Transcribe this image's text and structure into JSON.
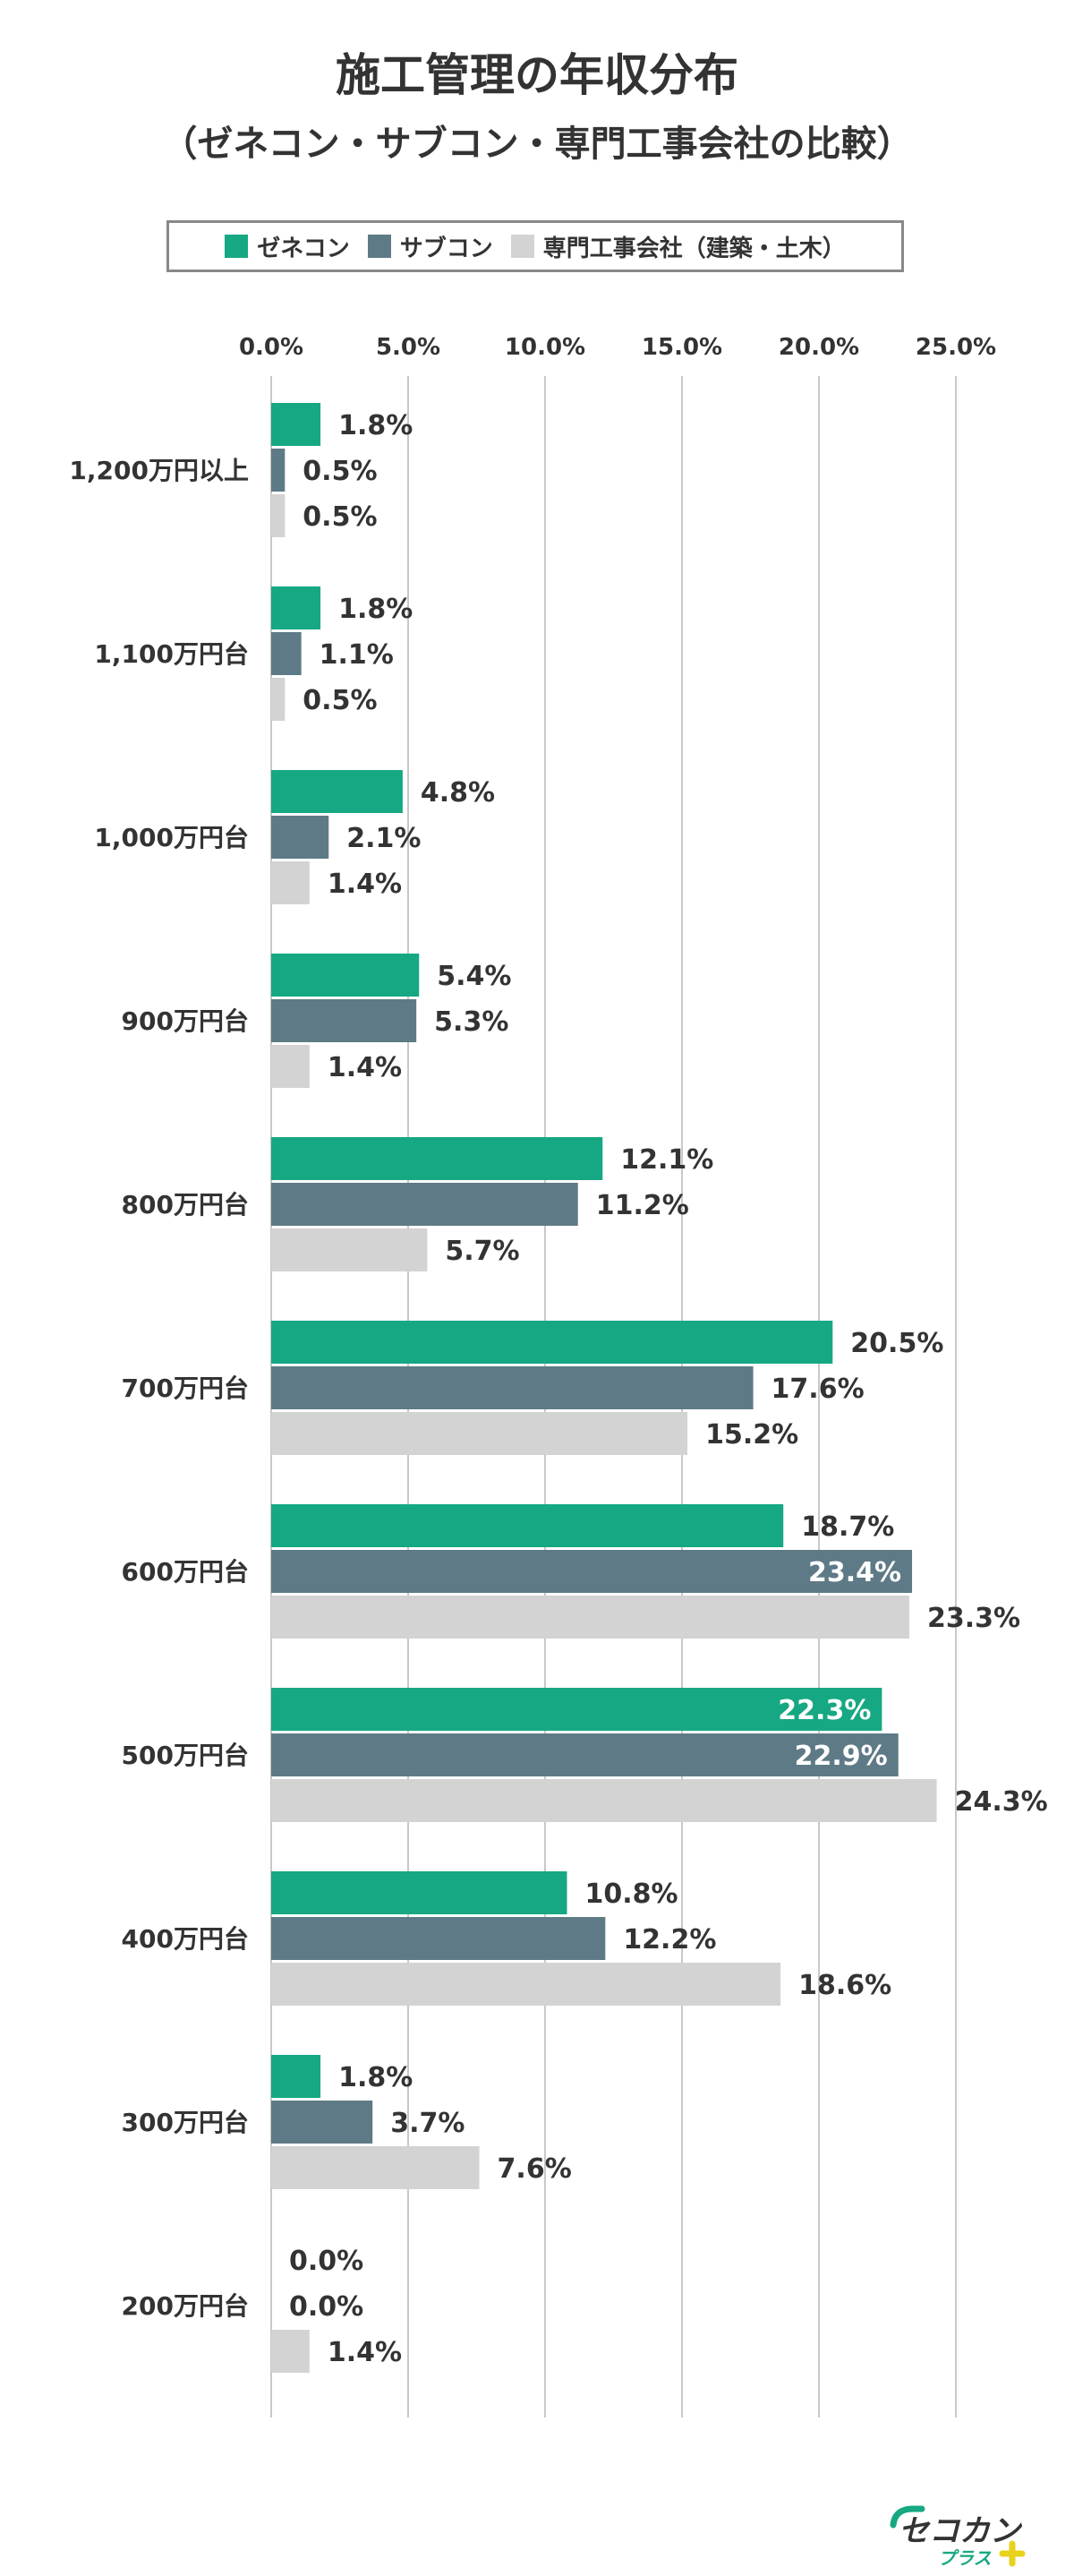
{
  "title": "施工管理の年収分布",
  "subtitle": "（ゼネコン・サブコン・専門工事会社の比較）",
  "legend": [
    {
      "name": "ゼネコン",
      "color": "#16a882"
    },
    {
      "name": "サブコン",
      "color": "#5e7a86"
    },
    {
      "name": "専門工事会社（建築・土木）",
      "color": "#d3d3d3"
    }
  ],
  "logo": {
    "name": "セコカン",
    "tag": "プラス"
  },
  "chart_data": {
    "type": "bar",
    "orientation": "horizontal",
    "title": "施工管理の年収分布",
    "xlim": [
      0,
      25
    ],
    "xticks": [
      "0.0%",
      "5.0%",
      "10.0%",
      "15.0%",
      "20.0%",
      "25.0%"
    ],
    "categories": [
      "1,200万円以上",
      "1,100万円台",
      "1,000万円台",
      "900万円台",
      "800万円台",
      "700万円台",
      "600万円台",
      "500万円台",
      "400万円台",
      "300万円台",
      "200万円台"
    ],
    "series": [
      {
        "name": "ゼネコン",
        "color": "#16a882",
        "values": [
          1.8,
          1.8,
          4.8,
          5.4,
          12.1,
          20.5,
          18.7,
          22.3,
          10.8,
          1.8,
          0.0
        ]
      },
      {
        "name": "サブコン",
        "color": "#5e7a86",
        "values": [
          0.5,
          1.1,
          2.1,
          5.3,
          11.2,
          17.6,
          23.4,
          22.9,
          12.2,
          3.7,
          0.0
        ]
      },
      {
        "name": "専門工事会社（建築・土木）",
        "color": "#d3d3d3",
        "values": [
          0.5,
          0.5,
          1.4,
          1.4,
          5.7,
          15.2,
          23.3,
          24.3,
          18.6,
          7.6,
          1.4
        ]
      }
    ],
    "value_labels": [
      [
        "1.8%",
        "0.5%",
        "0.5%"
      ],
      [
        "1.8%",
        "1.1%",
        "0.5%"
      ],
      [
        "4.8%",
        "2.1%",
        "1.4%"
      ],
      [
        "5.4%",
        "5.3%",
        "1.4%"
      ],
      [
        "12.1%",
        "11.2%",
        "5.7%"
      ],
      [
        "20.5%",
        "17.6%",
        "15.2%"
      ],
      [
        "18.7%",
        "23.4%",
        "23.3%"
      ],
      [
        "22.3%",
        "22.9%",
        "24.3%"
      ],
      [
        "10.8%",
        "12.2%",
        "18.6%"
      ],
      [
        "1.8%",
        "3.7%",
        "7.6%"
      ],
      [
        "0.0%",
        "0.0%",
        "1.4%"
      ]
    ]
  }
}
